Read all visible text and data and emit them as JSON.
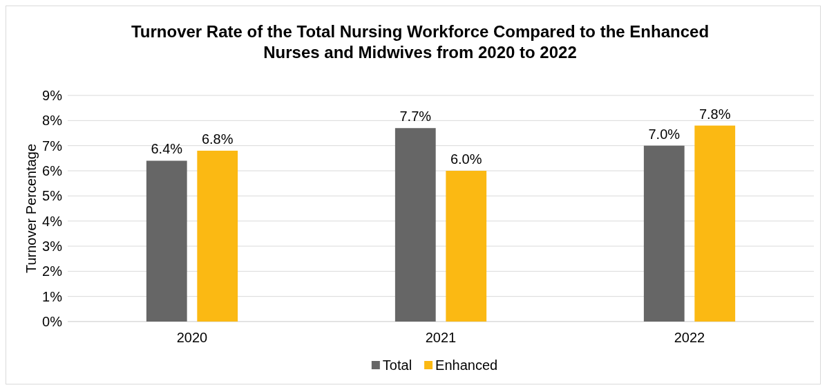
{
  "chart_data": {
    "type": "bar",
    "title": "Turnover Rate of the Total Nursing Workforce Compared to the Enhanced Nurses and Midwives from 2020 to 2022",
    "ylabel": "Turnover Percentage",
    "categories": [
      "2020",
      "2021",
      "2022"
    ],
    "series": [
      {
        "name": "Total",
        "color": "#666666",
        "values": [
          6.4,
          7.7,
          7.0
        ],
        "value_labels": [
          "6.4%",
          "7.7%",
          "7.0%"
        ]
      },
      {
        "name": "Enhanced",
        "color": "#fbb913",
        "values": [
          6.8,
          6.0,
          7.8
        ],
        "value_labels": [
          "6.8%",
          "6.0%",
          "7.8%"
        ]
      }
    ],
    "ylim": [
      0,
      9
    ],
    "yticks": [
      {
        "value": 0,
        "label": "0%"
      },
      {
        "value": 1,
        "label": "1%"
      },
      {
        "value": 2,
        "label": "2%"
      },
      {
        "value": 3,
        "label": "3%"
      },
      {
        "value": 4,
        "label": "4%"
      },
      {
        "value": 5,
        "label": "5%"
      },
      {
        "value": 6,
        "label": "6%"
      },
      {
        "value": 7,
        "label": "7%"
      },
      {
        "value": 8,
        "label": "8%"
      },
      {
        "value": 9,
        "label": "9%"
      }
    ],
    "grid": "y",
    "legend": "bottom"
  }
}
